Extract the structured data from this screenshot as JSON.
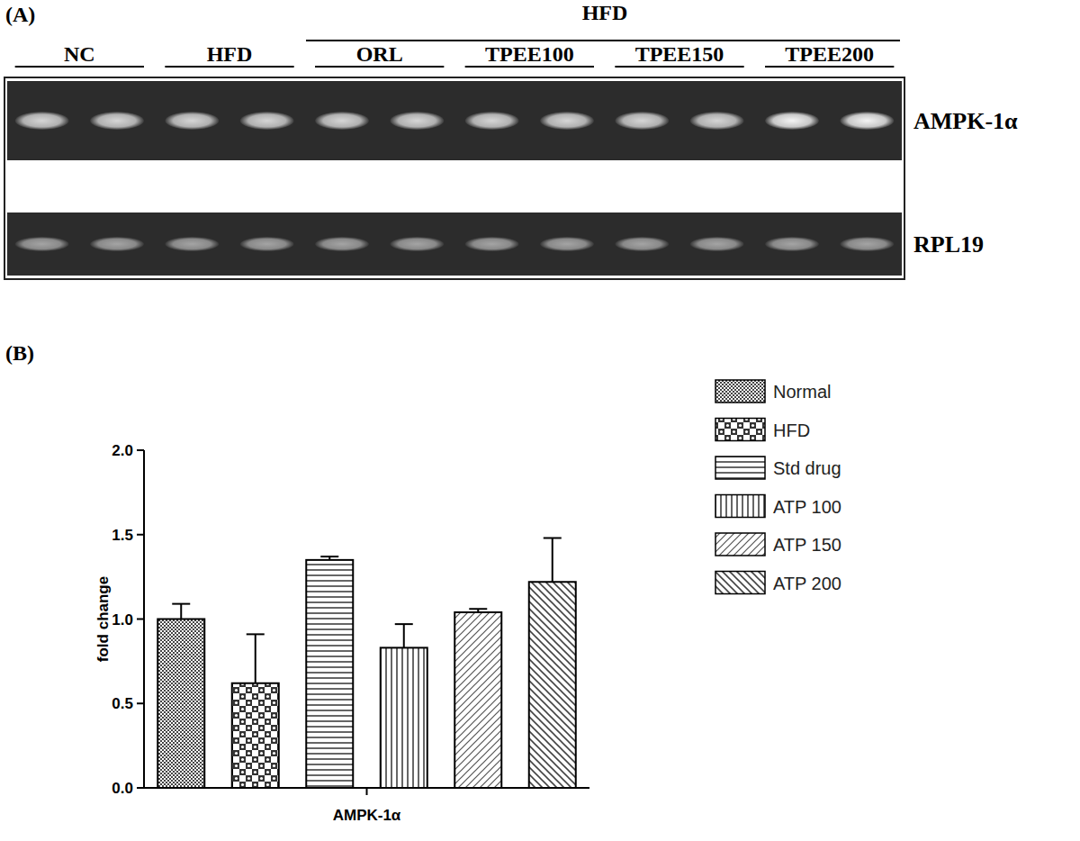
{
  "gel": {
    "panel_label": "(A)",
    "header": "HFD",
    "groups": [
      "NC",
      "HFD",
      "ORL",
      "TPEE100",
      "TPEE150",
      "TPEE200"
    ],
    "rows": [
      {
        "label": "AMPK-1α"
      },
      {
        "label": "RPL19"
      }
    ]
  },
  "chart_data": {
    "type": "bar",
    "title": "(B)",
    "y_label": "fold change",
    "categories": [
      "AMPK-1α"
    ],
    "series": [
      {
        "name": "Normal",
        "color": "#555555",
        "values": [
          1.0
        ],
        "errors": [
          0.09
        ]
      },
      {
        "name": "HFD",
        "color": "#555555",
        "values": [
          0.62
        ],
        "errors": [
          0.29
        ]
      },
      {
        "name": "Std drug",
        "color": "#555555",
        "values": [
          1.35
        ],
        "errors": [
          0.02
        ]
      },
      {
        "name": "ATP 100",
        "color": "#555555",
        "values": [
          0.83
        ],
        "errors": [
          0.14
        ]
      },
      {
        "name": "ATP 150",
        "color": "#555555",
        "values": [
          1.04
        ],
        "errors": [
          0.02
        ]
      },
      {
        "name": "ATP 200",
        "color": "#555555",
        "values": [
          1.22
        ],
        "errors": [
          0.26
        ]
      }
    ],
    "ylim": [
      0,
      2.0
    ],
    "yticks": [
      {
        "value": 0,
        "label": "0.0"
      },
      {
        "value": 0.5,
        "label": "0.5"
      },
      {
        "value": 1.0,
        "label": "1.0"
      },
      {
        "value": 1.5,
        "label": "1.5"
      },
      {
        "value": 2.0,
        "label": "2.0"
      }
    ],
    "grid": false,
    "legend": "right"
  }
}
